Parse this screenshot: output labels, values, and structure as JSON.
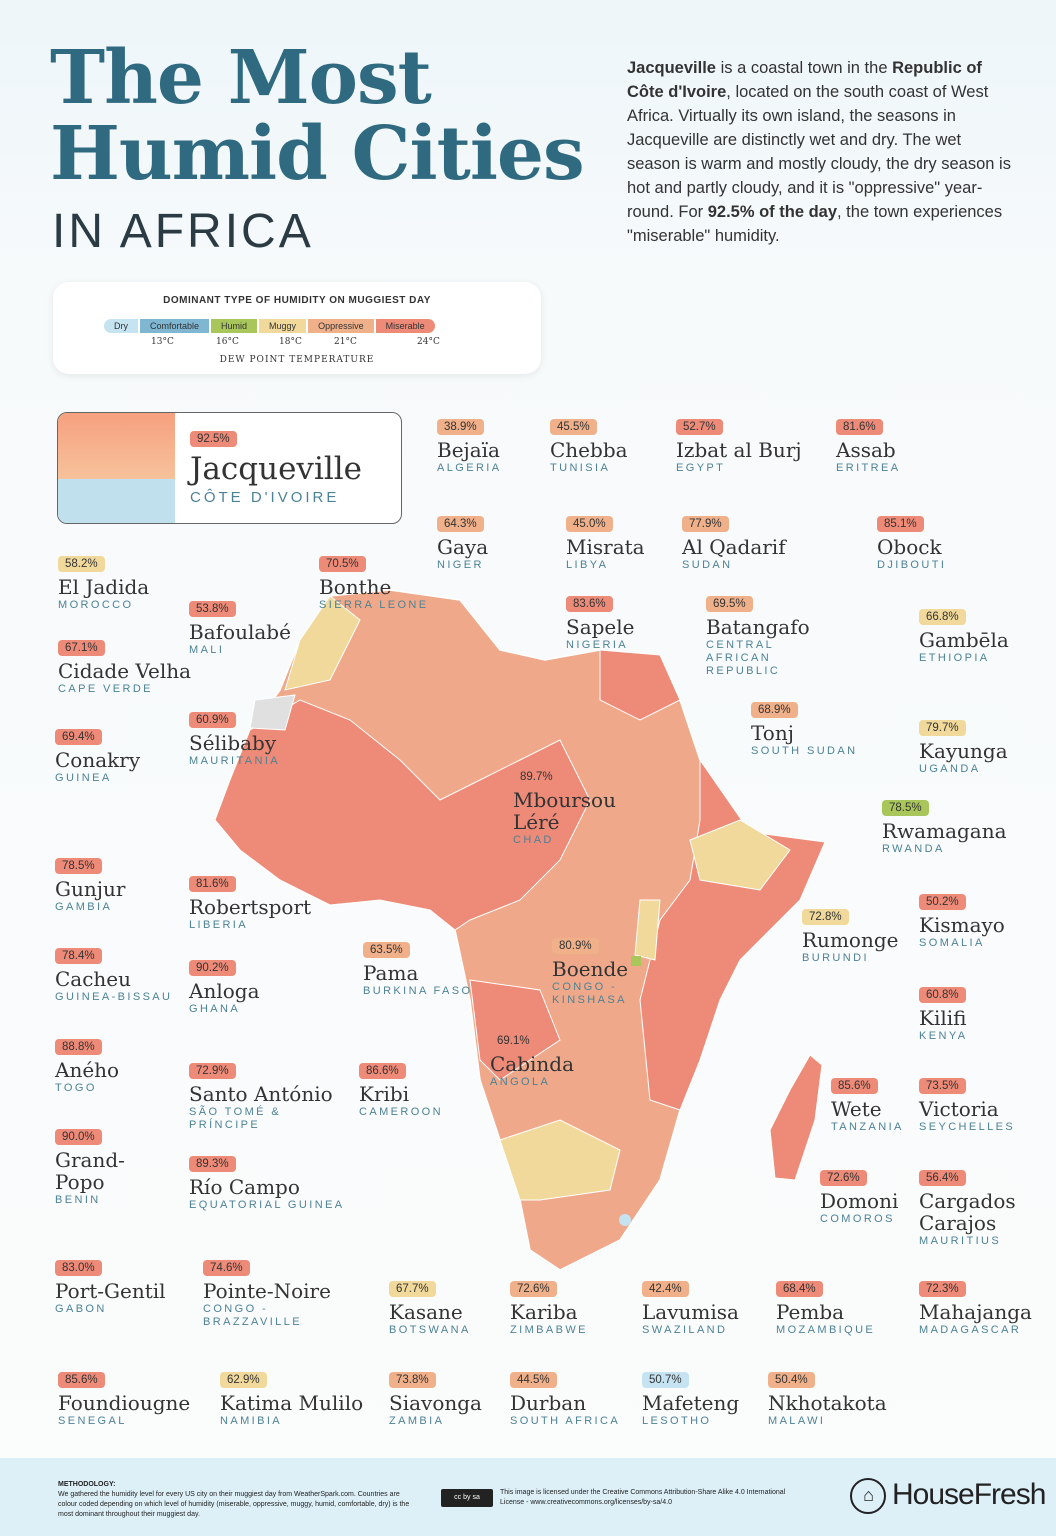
{
  "header": {
    "title_line1": "The Most",
    "title_line2": "Humid Cities",
    "subtitle": "IN AFRICA",
    "intro": {
      "city": "Jacqueville",
      "t1": " is a coastal town in the ",
      "country": "Republic of Côte d'Ivoire",
      "t2": ", located on the south coast of West Africa. Virtually its own island, the seasons in Jacqueville are distinctly wet and dry. The wet season is warm and mostly cloudy, the dry season is hot and partly cloudy, and it is \"oppressive\" year-round. For ",
      "stat": "92.5% of the day",
      "t3": ", the town experiences \"miserable\" humidity."
    }
  },
  "legend": {
    "title": "DOMINANT TYPE OF HUMIDITY ON MUGGIEST DAY",
    "categories": [
      {
        "key": "dry",
        "label": "Dry",
        "color": "#c5e3f0"
      },
      {
        "key": "comfortable",
        "label": "Comfortable",
        "color": "#7fb6d2"
      },
      {
        "key": "humid",
        "label": "Humid",
        "color": "#a9c65a"
      },
      {
        "key": "muggy",
        "label": "Muggy",
        "color": "#f0d99a"
      },
      {
        "key": "oppressive",
        "label": "Oppressive",
        "color": "#efb08a"
      },
      {
        "key": "miserable",
        "label": "Miserable",
        "color": "#ee8a78"
      }
    ],
    "ticks": [
      "13°C",
      "16°C",
      "18°C",
      "21°C",
      "24°C"
    ],
    "axis_label": "DEW POINT TEMPERATURE"
  },
  "featured": {
    "value": "92.5%",
    "city": "Jacqueville",
    "country": "CÔTE D'IVOIRE",
    "category": "miserable"
  },
  "cities": [
    {
      "value": "38.9%",
      "city": "Bejaïa",
      "country": "Algeria",
      "category": "oppressive"
    },
    {
      "value": "45.5%",
      "city": "Chebba",
      "country": "Tunisia",
      "category": "oppressive"
    },
    {
      "value": "52.7%",
      "city": "Izbat al Burj",
      "country": "Egypt",
      "category": "miserable"
    },
    {
      "value": "81.6%",
      "city": "Assab",
      "country": "Eritrea",
      "category": "miserable"
    },
    {
      "value": "64.3%",
      "city": "Gaya",
      "country": "Niger",
      "category": "oppressive"
    },
    {
      "value": "45.0%",
      "city": "Misrata",
      "country": "Libya",
      "category": "oppressive"
    },
    {
      "value": "77.9%",
      "city": "Al Qadarif",
      "country": "Sudan",
      "category": "oppressive"
    },
    {
      "value": "85.1%",
      "city": "Obock",
      "country": "Djibouti",
      "category": "miserable"
    },
    {
      "value": "58.2%",
      "city": "El Jadida",
      "country": "Morocco",
      "category": "muggy"
    },
    {
      "value": "70.5%",
      "city": "Bonthe",
      "country": "Sierra Leone",
      "category": "miserable"
    },
    {
      "value": "53.8%",
      "city": "Bafoulabé",
      "country": "Mali",
      "category": "miserable"
    },
    {
      "value": "67.1%",
      "city": "Cidade Velha",
      "country": "Cape Verde",
      "category": "miserable"
    },
    {
      "value": "83.6%",
      "city": "Sapele",
      "country": "Nigeria",
      "category": "miserable"
    },
    {
      "value": "69.5%",
      "city": "Batangafo",
      "country": "Central African Republic",
      "category": "oppressive"
    },
    {
      "value": "66.8%",
      "city": "Gambēla",
      "country": "Ethiopia",
      "category": "muggy"
    },
    {
      "value": "60.9%",
      "city": "Sélibaby",
      "country": "Mauritania",
      "category": "miserable"
    },
    {
      "value": "69.4%",
      "city": "Conakry",
      "country": "Guinea",
      "category": "miserable"
    },
    {
      "value": "68.9%",
      "city": "Tonj",
      "country": "South Sudan",
      "category": "oppressive"
    },
    {
      "value": "79.7%",
      "city": "Kayunga",
      "country": "Uganda",
      "category": "muggy"
    },
    {
      "value": "89.7%",
      "city": "Mboursou Léré",
      "country": "Chad",
      "category": "miserable"
    },
    {
      "value": "78.5%",
      "city": "Rwamagana",
      "country": "Rwanda",
      "category": "humid"
    },
    {
      "value": "78.5%",
      "city": "Gunjur",
      "country": "Gambia",
      "category": "miserable"
    },
    {
      "value": "81.6%",
      "city": "Robertsport",
      "country": "Liberia",
      "category": "miserable"
    },
    {
      "value": "50.2%",
      "city": "Kismayo",
      "country": "Somalia",
      "category": "miserable"
    },
    {
      "value": "72.8%",
      "city": "Rumonge",
      "country": "Burundi",
      "category": "muggy"
    },
    {
      "value": "80.9%",
      "city": "Boende",
      "country": "Congo - Kinshasa",
      "category": "oppressive"
    },
    {
      "value": "63.5%",
      "city": "Pama",
      "country": "Burkina Faso",
      "category": "oppressive"
    },
    {
      "value": "78.4%",
      "city": "Cacheu",
      "country": "Guinea-Bissau",
      "category": "miserable"
    },
    {
      "value": "90.2%",
      "city": "Anloga",
      "country": "Ghana",
      "category": "miserable"
    },
    {
      "value": "60.8%",
      "city": "Kilifi",
      "country": "Kenya",
      "category": "miserable"
    },
    {
      "value": "69.1%",
      "city": "Cabinda",
      "country": "Angola",
      "category": "miserable"
    },
    {
      "value": "88.8%",
      "city": "Aného",
      "country": "Togo",
      "category": "miserable"
    },
    {
      "value": "72.9%",
      "city": "Santo António",
      "country": "São Tomé & Príncipe",
      "category": "miserable"
    },
    {
      "value": "86.6%",
      "city": "Kribi",
      "country": "Cameroon",
      "category": "miserable"
    },
    {
      "value": "85.6%",
      "city": "Wete",
      "country": "Tanzania",
      "category": "miserable"
    },
    {
      "value": "73.5%",
      "city": "Victoria",
      "country": "Seychelles",
      "category": "miserable"
    },
    {
      "value": "90.0%",
      "city": "Grand-Popo",
      "country": "Benin",
      "category": "miserable"
    },
    {
      "value": "89.3%",
      "city": "Río Campo",
      "country": "Equatorial Guinea",
      "category": "miserable"
    },
    {
      "value": "72.6%",
      "city": "Domoni",
      "country": "Comoros",
      "category": "miserable"
    },
    {
      "value": "56.4%",
      "city": "Cargados Carajos",
      "country": "Mauritius",
      "category": "miserable"
    },
    {
      "value": "83.0%",
      "city": "Port-Gentil",
      "country": "Gabon",
      "category": "miserable"
    },
    {
      "value": "74.6%",
      "city": "Pointe-Noire",
      "country": "Congo - Brazzaville",
      "category": "miserable"
    },
    {
      "value": "67.7%",
      "city": "Kasane",
      "country": "Botswana",
      "category": "muggy"
    },
    {
      "value": "72.6%",
      "city": "Kariba",
      "country": "Zimbabwe",
      "category": "oppressive"
    },
    {
      "value": "42.4%",
      "city": "Lavumisa",
      "country": "Swaziland",
      "category": "oppressive"
    },
    {
      "value": "68.4%",
      "city": "Pemba",
      "country": "Mozambique",
      "category": "miserable"
    },
    {
      "value": "72.3%",
      "city": "Mahajanga",
      "country": "Madagascar",
      "category": "miserable"
    },
    {
      "value": "85.6%",
      "city": "Foundiougne",
      "country": "Senegal",
      "category": "miserable"
    },
    {
      "value": "62.9%",
      "city": "Katima Mulilo",
      "country": "Namibia",
      "category": "muggy"
    },
    {
      "value": "73.8%",
      "city": "Siavonga",
      "country": "Zambia",
      "category": "oppressive"
    },
    {
      "value": "44.5%",
      "city": "Durban",
      "country": "South Africa",
      "category": "oppressive"
    },
    {
      "value": "50.7%",
      "city": "Mafeteng",
      "country": "Lesotho",
      "category": "dry"
    },
    {
      "value": "50.4%",
      "city": "Nkhotakota",
      "country": "Malawi",
      "category": "oppressive"
    }
  ],
  "footer": {
    "methodology_title": "METHODOLOGY:",
    "methodology": "We gathered the humidity level for every US city on their muggiest day from WeatherSpark.com. Countries are colour coded depending on which level of humidity (miserable, oppressive, muggy, humid, comfortable, dry) is the most dominant throughout their muggiest day.",
    "license": "This image is licensed under the Creative Commons Attribution-Share Alike 4.0 International License - www.creativecommons.org/licenses/by-sa/4.0",
    "cc_badge": "cc by sa",
    "brand": "HouseFresh"
  }
}
